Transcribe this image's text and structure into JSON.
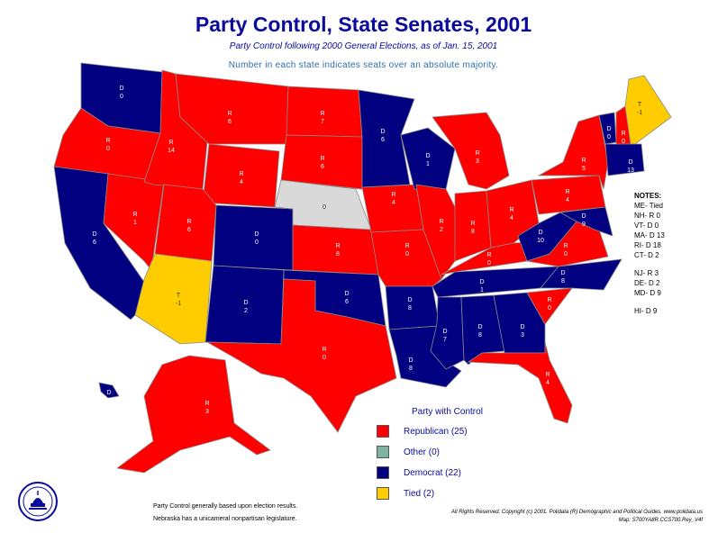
{
  "header": {
    "title": "Party Control, State Senates, 2001",
    "subtitle": "Party Control following 2000 General Elections, as of Jan. 15, 2001",
    "note": "Number in each state indicates seats over an absolute majority."
  },
  "colors": {
    "republican": "#ff0000",
    "democrat": "#000080",
    "tied": "#ffcc00",
    "other": "#7fb3a0",
    "nonpartisan": "#d9d9d9",
    "title": "#0a0a9c"
  },
  "states": {
    "wa": {
      "party": "D",
      "seats": "0"
    },
    "or": {
      "party": "R",
      "seats": "0"
    },
    "ca": {
      "party": "D",
      "seats": "6"
    },
    "id": {
      "party": "R",
      "seats": "14"
    },
    "nv": {
      "party": "R",
      "seats": "1"
    },
    "mt": {
      "party": "R",
      "seats": "6"
    },
    "wy": {
      "party": "R",
      "seats": "4"
    },
    "ut": {
      "party": "R",
      "seats": "6"
    },
    "az": {
      "party": "T",
      "seats": "-1"
    },
    "co": {
      "party": "D",
      "seats": "0"
    },
    "nm": {
      "party": "D",
      "seats": "2"
    },
    "nd": {
      "party": "R",
      "seats": "7"
    },
    "sd": {
      "party": "R",
      "seats": "6"
    },
    "ne": {
      "party": "",
      "seats": "0"
    },
    "ks": {
      "party": "R",
      "seats": "8"
    },
    "ok": {
      "party": "D",
      "seats": "6"
    },
    "tx": {
      "party": "R",
      "seats": "0"
    },
    "mn": {
      "party": "D",
      "seats": "6"
    },
    "ia": {
      "party": "R",
      "seats": "4"
    },
    "mo": {
      "party": "R",
      "seats": "0"
    },
    "ar": {
      "party": "D",
      "seats": "8"
    },
    "la": {
      "party": "D",
      "seats": "8"
    },
    "wi": {
      "party": "D",
      "seats": "1"
    },
    "il": {
      "party": "R",
      "seats": "2"
    },
    "mi": {
      "party": "R",
      "seats": "3"
    },
    "in": {
      "party": "R",
      "seats": "8"
    },
    "oh": {
      "party": "R",
      "seats": "4"
    },
    "ky": {
      "party": "R",
      "seats": "0"
    },
    "tn": {
      "party": "D",
      "seats": "1"
    },
    "ms": {
      "party": "D",
      "seats": "7"
    },
    "al": {
      "party": "D",
      "seats": "8"
    },
    "ga": {
      "party": "D",
      "seats": "3"
    },
    "fl": {
      "party": "R",
      "seats": "4"
    },
    "sc": {
      "party": "R",
      "seats": "0"
    },
    "nc": {
      "party": "D",
      "seats": "8"
    },
    "va": {
      "party": "R",
      "seats": "0"
    },
    "wv": {
      "party": "D",
      "seats": "10"
    },
    "pa": {
      "party": "R",
      "seats": "4"
    },
    "ny": {
      "party": "R",
      "seats": "5"
    },
    "md": {
      "party": "D",
      "seats": "9"
    },
    "vt": {
      "party": "D",
      "seats": "0"
    },
    "nh": {
      "party": "R",
      "seats": "0"
    },
    "me": {
      "party": "T",
      "seats": "-1"
    },
    "ma": {
      "party": "D",
      "seats": "13"
    },
    "ak": {
      "party": "R",
      "seats": "3"
    },
    "hi": {
      "party": "D",
      "seats": "9"
    }
  },
  "notes": {
    "heading": "NOTES:",
    "group1": [
      "ME- Tied",
      "NH- R 0",
      "VT- D 0",
      "MA- D 13",
      "RI- D 18",
      "CT- D 2"
    ],
    "group2": [
      "NJ- R 3",
      "DE- D 2",
      "MD- D 9"
    ],
    "group3": [
      "HI- D 9"
    ]
  },
  "legend": {
    "title": "Party with Control",
    "items": [
      {
        "label": "Republican (25)",
        "color": "#ff0000"
      },
      {
        "label": "Other (0)",
        "color": "#7fb3a0"
      },
      {
        "label": "Democrat (22)",
        "color": "#000080"
      },
      {
        "label": "Tied (2)",
        "color": "#ffcc00"
      }
    ]
  },
  "footer": {
    "left_line1": "Party Control generally based upon election results.",
    "left_line2": "Nebraska has a unicameral nonpartisan legislature.",
    "right_line1": "All Rights Reserved. Copyright (c) 2001. Polidata (R) Demographic and Political Guides. www.polidata.us",
    "right_line2": "Map: S700YA8R.CCS700.Rey_V4f"
  }
}
